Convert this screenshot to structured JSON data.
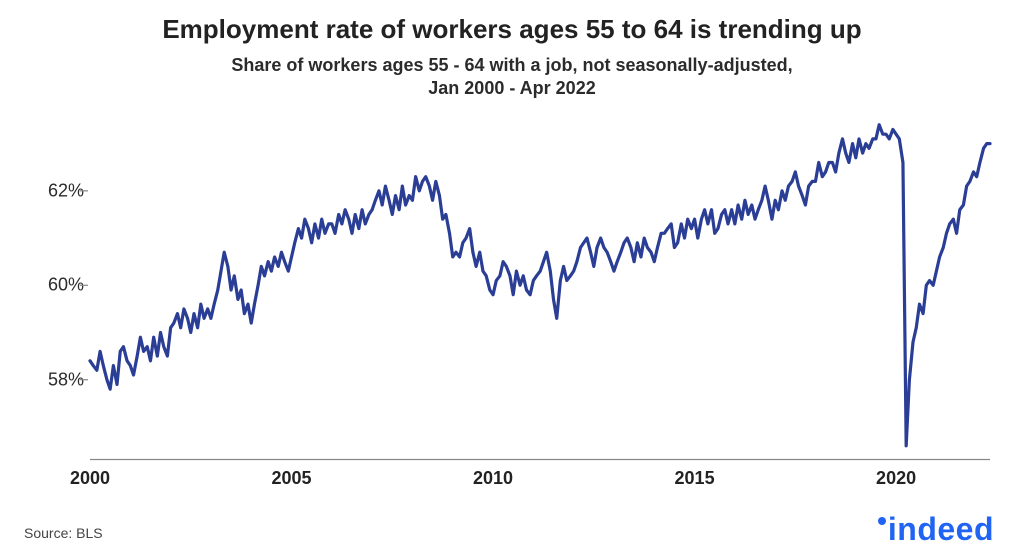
{
  "chart": {
    "type": "line",
    "title": "Employment rate of workers ages 55 to 64 is trending up",
    "title_fontsize": 26,
    "title_color": "#222222",
    "subtitle_line1": "Share of workers ages 55 - 64 with a job, not seasonally-adjusted,",
    "subtitle_line2": "Jan 2000 - Apr 2022",
    "subtitle_fontsize": 18,
    "subtitle_color": "#2b2b2b",
    "background_color": "#ffffff",
    "line_color": "#2b3e96",
    "line_width": 3.2,
    "axis_color": "#888888",
    "axis_width": 1.2,
    "x": {
      "min": 2000.0,
      "max": 2022.33,
      "ticks": [
        2000,
        2005,
        2010,
        2015,
        2020
      ],
      "tick_labels": [
        "2000",
        "2005",
        "2010",
        "2015",
        "2020"
      ],
      "tick_fontsize": 18,
      "tick_fontweight": 700,
      "tick_color": "#222222"
    },
    "y": {
      "min": 56.3,
      "max": 63.5,
      "ticks": [
        58,
        60,
        62
      ],
      "tick_labels": [
        "58%",
        "60%",
        "62%"
      ],
      "tick_fontsize": 18,
      "tick_fontweight": 400,
      "tick_color": "#2b2b2b",
      "tick_mark_length": 8
    },
    "series": {
      "x": [
        2000.0,
        2000.08,
        2000.17,
        2000.25,
        2000.33,
        2000.42,
        2000.5,
        2000.58,
        2000.67,
        2000.75,
        2000.83,
        2000.92,
        2001.0,
        2001.08,
        2001.17,
        2001.25,
        2001.33,
        2001.42,
        2001.5,
        2001.58,
        2001.67,
        2001.75,
        2001.83,
        2001.92,
        2002.0,
        2002.08,
        2002.17,
        2002.25,
        2002.33,
        2002.42,
        2002.5,
        2002.58,
        2002.67,
        2002.75,
        2002.83,
        2002.92,
        2003.0,
        2003.08,
        2003.17,
        2003.25,
        2003.33,
        2003.42,
        2003.5,
        2003.58,
        2003.67,
        2003.75,
        2003.83,
        2003.92,
        2004.0,
        2004.08,
        2004.17,
        2004.25,
        2004.33,
        2004.42,
        2004.5,
        2004.58,
        2004.67,
        2004.75,
        2004.83,
        2004.92,
        2005.0,
        2005.08,
        2005.17,
        2005.25,
        2005.33,
        2005.42,
        2005.5,
        2005.58,
        2005.67,
        2005.75,
        2005.83,
        2005.92,
        2006.0,
        2006.08,
        2006.17,
        2006.25,
        2006.33,
        2006.42,
        2006.5,
        2006.58,
        2006.67,
        2006.75,
        2006.83,
        2006.92,
        2007.0,
        2007.08,
        2007.17,
        2007.25,
        2007.33,
        2007.42,
        2007.5,
        2007.58,
        2007.67,
        2007.75,
        2007.83,
        2007.92,
        2008.0,
        2008.08,
        2008.17,
        2008.25,
        2008.33,
        2008.42,
        2008.5,
        2008.58,
        2008.67,
        2008.75,
        2008.83,
        2008.92,
        2009.0,
        2009.08,
        2009.17,
        2009.25,
        2009.33,
        2009.42,
        2009.5,
        2009.58,
        2009.67,
        2009.75,
        2009.83,
        2009.92,
        2010.0,
        2010.08,
        2010.17,
        2010.25,
        2010.33,
        2010.42,
        2010.5,
        2010.58,
        2010.67,
        2010.75,
        2010.83,
        2010.92,
        2011.0,
        2011.08,
        2011.17,
        2011.25,
        2011.33,
        2011.42,
        2011.5,
        2011.58,
        2011.67,
        2011.75,
        2011.83,
        2011.92,
        2012.0,
        2012.08,
        2012.17,
        2012.25,
        2012.33,
        2012.42,
        2012.5,
        2012.58,
        2012.67,
        2012.75,
        2012.83,
        2012.92,
        2013.0,
        2013.08,
        2013.17,
        2013.25,
        2013.33,
        2013.42,
        2013.5,
        2013.58,
        2013.67,
        2013.75,
        2013.83,
        2013.92,
        2014.0,
        2014.08,
        2014.17,
        2014.25,
        2014.33,
        2014.42,
        2014.5,
        2014.58,
        2014.67,
        2014.75,
        2014.83,
        2014.92,
        2015.0,
        2015.08,
        2015.17,
        2015.25,
        2015.33,
        2015.42,
        2015.5,
        2015.58,
        2015.67,
        2015.75,
        2015.83,
        2015.92,
        2016.0,
        2016.08,
        2016.17,
        2016.25,
        2016.33,
        2016.42,
        2016.5,
        2016.58,
        2016.67,
        2016.75,
        2016.83,
        2016.92,
        2017.0,
        2017.08,
        2017.17,
        2017.25,
        2017.33,
        2017.42,
        2017.5,
        2017.58,
        2017.67,
        2017.75,
        2017.83,
        2017.92,
        2018.0,
        2018.08,
        2018.17,
        2018.25,
        2018.33,
        2018.42,
        2018.5,
        2018.58,
        2018.67,
        2018.75,
        2018.83,
        2018.92,
        2019.0,
        2019.08,
        2019.17,
        2019.25,
        2019.33,
        2019.42,
        2019.5,
        2019.58,
        2019.67,
        2019.75,
        2019.83,
        2019.92,
        2020.0,
        2020.08,
        2020.17,
        2020.25,
        2020.33,
        2020.42,
        2020.5,
        2020.58,
        2020.67,
        2020.75,
        2020.83,
        2020.92,
        2021.0,
        2021.08,
        2021.17,
        2021.25,
        2021.33,
        2021.42,
        2021.5,
        2021.58,
        2021.67,
        2021.75,
        2021.83,
        2021.92,
        2022.0,
        2022.08,
        2022.17,
        2022.25,
        2022.33
      ],
      "y": [
        58.4,
        58.3,
        58.2,
        58.6,
        58.3,
        58.0,
        57.8,
        58.3,
        57.9,
        58.6,
        58.7,
        58.4,
        58.3,
        58.1,
        58.5,
        58.9,
        58.6,
        58.7,
        58.4,
        58.9,
        58.5,
        59.0,
        58.7,
        58.5,
        59.1,
        59.2,
        59.4,
        59.1,
        59.5,
        59.3,
        59.0,
        59.4,
        59.1,
        59.6,
        59.3,
        59.5,
        59.3,
        59.6,
        59.9,
        60.3,
        60.7,
        60.4,
        59.9,
        60.2,
        59.7,
        59.9,
        59.4,
        59.6,
        59.2,
        59.6,
        60.0,
        60.4,
        60.2,
        60.5,
        60.3,
        60.6,
        60.4,
        60.7,
        60.5,
        60.3,
        60.6,
        60.9,
        61.2,
        61.0,
        61.4,
        61.2,
        60.9,
        61.3,
        61.0,
        61.4,
        61.1,
        61.3,
        61.3,
        61.1,
        61.5,
        61.3,
        61.6,
        61.4,
        61.1,
        61.5,
        61.2,
        61.6,
        61.3,
        61.5,
        61.6,
        61.8,
        62.0,
        61.7,
        62.1,
        61.8,
        61.5,
        61.9,
        61.6,
        62.1,
        61.7,
        61.9,
        61.8,
        62.3,
        62.0,
        62.2,
        62.3,
        62.1,
        61.8,
        62.2,
        61.9,
        61.4,
        61.5,
        61.1,
        60.6,
        60.7,
        60.6,
        60.9,
        61.0,
        61.2,
        60.7,
        60.4,
        60.7,
        60.3,
        60.2,
        59.9,
        59.8,
        60.1,
        60.2,
        60.5,
        60.4,
        60.2,
        59.8,
        60.3,
        60.0,
        60.2,
        59.9,
        59.8,
        60.1,
        60.2,
        60.3,
        60.5,
        60.7,
        60.3,
        59.7,
        59.3,
        60.1,
        60.4,
        60.1,
        60.2,
        60.3,
        60.5,
        60.8,
        60.9,
        61.0,
        60.7,
        60.4,
        60.8,
        61.0,
        60.8,
        60.7,
        60.5,
        60.3,
        60.5,
        60.7,
        60.9,
        61.0,
        60.8,
        60.5,
        60.9,
        60.6,
        61.0,
        60.8,
        60.7,
        60.5,
        60.8,
        61.1,
        61.1,
        61.2,
        61.3,
        60.8,
        60.9,
        61.3,
        61.0,
        61.4,
        61.2,
        61.4,
        61.0,
        61.4,
        61.6,
        61.3,
        61.6,
        61.1,
        61.2,
        61.5,
        61.6,
        61.3,
        61.6,
        61.3,
        61.7,
        61.4,
        61.8,
        61.5,
        61.7,
        61.4,
        61.6,
        61.8,
        62.1,
        61.8,
        61.4,
        61.8,
        61.6,
        62.0,
        61.8,
        62.1,
        62.2,
        62.4,
        62.1,
        61.9,
        61.7,
        62.1,
        62.2,
        62.2,
        62.6,
        62.3,
        62.4,
        62.6,
        62.6,
        62.4,
        62.8,
        63.1,
        62.8,
        62.6,
        63.0,
        62.7,
        63.1,
        62.8,
        63.0,
        62.9,
        63.1,
        63.1,
        63.4,
        63.2,
        63.2,
        63.1,
        63.3,
        63.2,
        63.1,
        62.6,
        56.6,
        58.0,
        58.8,
        59.1,
        59.6,
        59.4,
        60.0,
        60.1,
        60.0,
        60.3,
        60.6,
        60.8,
        61.1,
        61.3,
        61.4,
        61.1,
        61.6,
        61.7,
        62.1,
        62.2,
        62.4,
        62.3,
        62.6,
        62.9,
        63.0,
        63.0
      ]
    },
    "source_label": "Source: BLS",
    "source_fontsize": 14,
    "source_color": "#444444",
    "logo": {
      "text": "indeed",
      "color": "#2164f3",
      "fontsize": 32,
      "dot_color": "#2164f3",
      "dot_size": 8
    }
  }
}
